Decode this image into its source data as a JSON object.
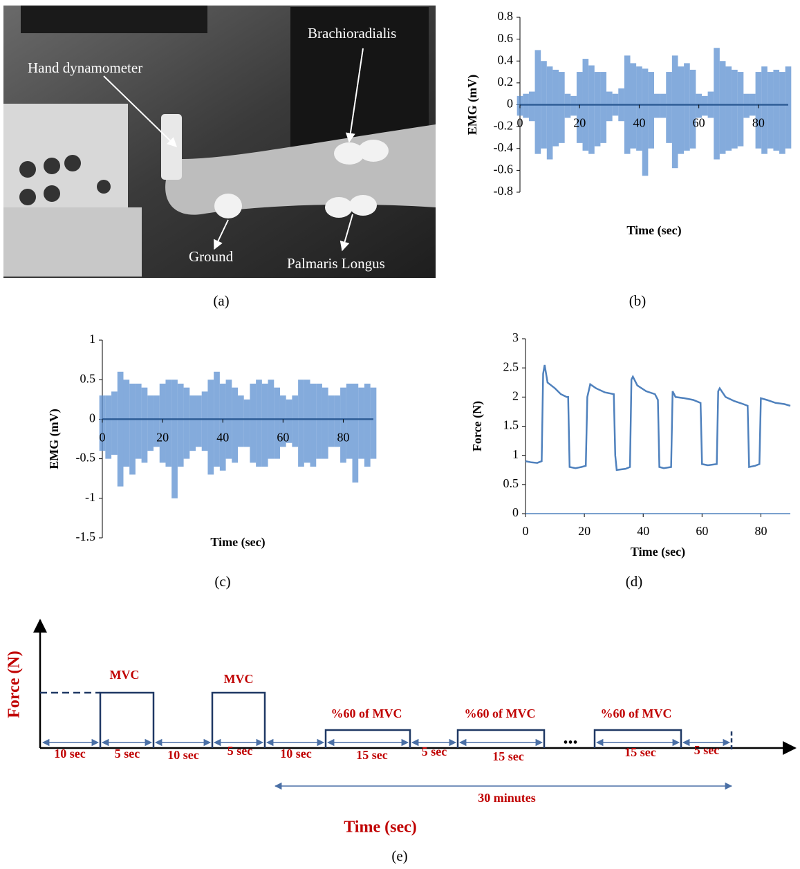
{
  "panel_a": {
    "labels": [
      "Hand dynamometer",
      "Brachioradialis",
      "Ground",
      "Palmaris Longus"
    ],
    "caption": "(a)"
  },
  "chart_data": [
    {
      "type": "range",
      "caption": "(b)",
      "ylabel": "EMG (mV)",
      "xlabel": "Time (sec)",
      "color": "#5b8fd0",
      "x": [
        0,
        2,
        4,
        6,
        8,
        10,
        12,
        14,
        16,
        18,
        20,
        22,
        24,
        26,
        28,
        30,
        32,
        34,
        36,
        38,
        40,
        42,
        44,
        46,
        48,
        50,
        52,
        54,
        56,
        58,
        60,
        62,
        64,
        66,
        68,
        70,
        72,
        74,
        76,
        78,
        80,
        82,
        84,
        86,
        88,
        90
      ],
      "high": [
        0.08,
        0.1,
        0.12,
        0.5,
        0.4,
        0.35,
        0.32,
        0.3,
        0.1,
        0.08,
        0.3,
        0.42,
        0.36,
        0.3,
        0.3,
        0.12,
        0.1,
        0.15,
        0.45,
        0.38,
        0.35,
        0.33,
        0.3,
        0.1,
        0.1,
        0.3,
        0.45,
        0.35,
        0.38,
        0.32,
        0.1,
        0.08,
        0.12,
        0.52,
        0.4,
        0.35,
        0.32,
        0.3,
        0.1,
        0.1,
        0.3,
        0.35,
        0.3,
        0.32,
        0.3,
        0.35
      ],
      "low": [
        -0.1,
        -0.12,
        -0.15,
        -0.45,
        -0.4,
        -0.5,
        -0.38,
        -0.35,
        -0.12,
        -0.1,
        -0.35,
        -0.42,
        -0.45,
        -0.38,
        -0.35,
        -0.15,
        -0.1,
        -0.15,
        -0.45,
        -0.4,
        -0.42,
        -0.65,
        -0.4,
        -0.12,
        -0.12,
        -0.35,
        -0.58,
        -0.45,
        -0.42,
        -0.4,
        -0.12,
        -0.1,
        -0.12,
        -0.5,
        -0.45,
        -0.42,
        -0.4,
        -0.38,
        -0.12,
        -0.1,
        -0.4,
        -0.45,
        -0.4,
        -0.42,
        -0.45,
        -0.4
      ],
      "xlim": [
        0,
        90
      ],
      "ylim": [
        -0.8,
        0.8
      ],
      "xticks": [
        0,
        20,
        40,
        60,
        80
      ],
      "yticks": [
        -0.8,
        -0.6,
        -0.4,
        -0.2,
        0,
        0.2,
        0.4,
        0.6,
        0.8
      ]
    },
    {
      "type": "range",
      "caption": "(c)",
      "ylabel": "EMG (mV)",
      "xlabel": "Time (sec)",
      "color": "#5b8fd0",
      "x": [
        0,
        2,
        4,
        6,
        8,
        10,
        12,
        14,
        16,
        18,
        20,
        22,
        24,
        26,
        28,
        30,
        32,
        34,
        36,
        38,
        40,
        42,
        44,
        46,
        48,
        50,
        52,
        54,
        56,
        58,
        60,
        62,
        64,
        66,
        68,
        70,
        72,
        74,
        76,
        78,
        80,
        82,
        84,
        86,
        88,
        90
      ],
      "high": [
        0.3,
        0.3,
        0.35,
        0.6,
        0.5,
        0.45,
        0.45,
        0.4,
        0.3,
        0.3,
        0.45,
        0.5,
        0.5,
        0.45,
        0.4,
        0.3,
        0.3,
        0.35,
        0.5,
        0.6,
        0.45,
        0.5,
        0.4,
        0.3,
        0.25,
        0.45,
        0.5,
        0.45,
        0.5,
        0.4,
        0.3,
        0.25,
        0.3,
        0.5,
        0.5,
        0.45,
        0.45,
        0.4,
        0.3,
        0.3,
        0.4,
        0.45,
        0.45,
        0.4,
        0.45,
        0.4
      ],
      "low": [
        -0.4,
        -0.5,
        -0.45,
        -0.85,
        -0.6,
        -0.7,
        -0.5,
        -0.55,
        -0.4,
        -0.35,
        -0.55,
        -0.6,
        -1.0,
        -0.6,
        -0.5,
        -0.4,
        -0.35,
        -0.4,
        -0.7,
        -0.6,
        -0.65,
        -0.5,
        -0.55,
        -0.35,
        -0.35,
        -0.55,
        -0.6,
        -0.6,
        -0.5,
        -0.5,
        -0.35,
        -0.3,
        -0.35,
        -0.6,
        -0.55,
        -0.6,
        -0.5,
        -0.5,
        -0.35,
        -0.35,
        -0.55,
        -0.5,
        -0.8,
        -0.5,
        -0.6,
        -0.5
      ],
      "xlim": [
        0,
        90
      ],
      "ylim": [
        -1.5,
        1
      ],
      "xticks": [
        0,
        20,
        40,
        60,
        80
      ],
      "yticks": [
        -1.5,
        -1,
        -0.5,
        0,
        0.5,
        1
      ]
    },
    {
      "type": "line",
      "caption": "(d)",
      "ylabel": "Force (N)",
      "xlabel": "Time (sec)",
      "color": "#4f81bd",
      "x": [
        0,
        2,
        4,
        5.5,
        6,
        6.5,
        7.5,
        10,
        12,
        14,
        14.5,
        15,
        17,
        19,
        20.5,
        21,
        22,
        24,
        27,
        30,
        30.5,
        31,
        34,
        35.5,
        36,
        36.5,
        38,
        41,
        44,
        45,
        45.5,
        47,
        49.5,
        50,
        51,
        54,
        57,
        59.5,
        60,
        62,
        65,
        65.5,
        66,
        68,
        71,
        74,
        75.5,
        76,
        78,
        79.5,
        80,
        82,
        85,
        88,
        90
      ],
      "values": [
        0.9,
        0.88,
        0.87,
        0.9,
        2.4,
        2.55,
        2.25,
        2.15,
        2.05,
        2.0,
        2.0,
        0.8,
        0.78,
        0.8,
        0.82,
        2.0,
        2.22,
        2.15,
        2.08,
        2.05,
        1.0,
        0.75,
        0.77,
        0.8,
        2.3,
        2.35,
        2.2,
        2.1,
        2.05,
        1.95,
        0.8,
        0.78,
        0.8,
        2.1,
        2.0,
        1.98,
        1.95,
        1.9,
        0.85,
        0.83,
        0.85,
        2.1,
        2.15,
        2.0,
        1.93,
        1.88,
        1.85,
        0.8,
        0.82,
        0.85,
        1.98,
        1.95,
        1.9,
        1.88,
        1.85
      ],
      "xlim": [
        0,
        90
      ],
      "ylim": [
        0,
        3
      ],
      "xticks": [
        0,
        20,
        40,
        60,
        80
      ],
      "yticks": [
        0,
        0.5,
        1,
        1.5,
        2,
        2.5,
        3
      ]
    }
  ],
  "panel_e": {
    "y_label": "Force (N)",
    "x_label": "Time (sec)",
    "pulse_labels": [
      "MVC",
      "MVC",
      "%60 of MVC",
      "%60 of MVC",
      "%60 of MVC"
    ],
    "interval_labels": [
      "10 sec",
      "5 sec",
      "10 sec",
      "5 sec",
      "10 sec",
      "15 sec",
      "5 sec",
      "15 sec",
      "15 sec",
      "5 sec"
    ],
    "ellipsis": "•••",
    "span_label": "30 minutes",
    "caption": "(e)"
  }
}
